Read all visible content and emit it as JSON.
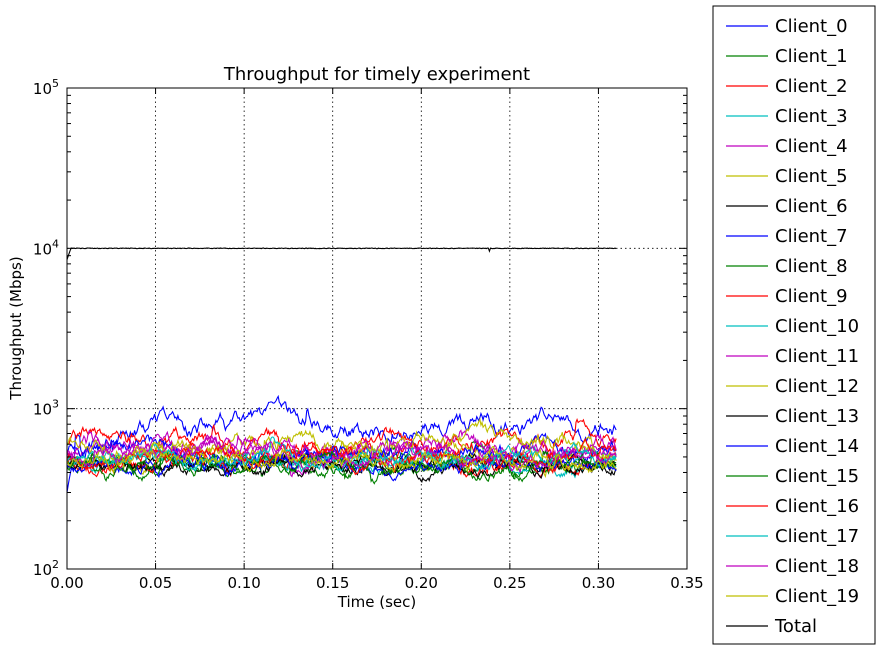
{
  "chart_data": {
    "type": "line",
    "title": "Throughput for timely experiment",
    "xlabel": "Time (sec)",
    "ylabel": "Throughput (Mbps)",
    "xlim": [
      0.0,
      0.35
    ],
    "ylim": [
      100,
      100000
    ],
    "yscale": "log",
    "grid": true,
    "legend_position": "outside-right",
    "x_ticks": [
      "0.00",
      "0.05",
      "0.10",
      "0.15",
      "0.20",
      "0.25",
      "0.30",
      "0.35"
    ],
    "y_ticks": [
      {
        "base": "10",
        "exp": "2"
      },
      {
        "base": "10",
        "exp": "3"
      },
      {
        "base": "10",
        "exp": "4"
      },
      {
        "base": "10",
        "exp": "5"
      }
    ],
    "x_end": 0.31,
    "series": [
      {
        "name": "Client_0",
        "color": "#0000ff",
        "level": 750,
        "spread": 0.14
      },
      {
        "name": "Client_1",
        "color": "#008000",
        "level": 480,
        "spread": 0.1
      },
      {
        "name": "Client_2",
        "color": "#ff0000",
        "level": 600,
        "spread": 0.13
      },
      {
        "name": "Client_3",
        "color": "#00bfbf",
        "level": 460,
        "spread": 0.1
      },
      {
        "name": "Client_4",
        "color": "#bf00bf",
        "level": 540,
        "spread": 0.12
      },
      {
        "name": "Client_5",
        "color": "#bfbf00",
        "level": 500,
        "spread": 0.12
      },
      {
        "name": "Client_6",
        "color": "#000000",
        "level": 450,
        "spread": 0.1
      },
      {
        "name": "Client_7",
        "color": "#0000ff",
        "level": 520,
        "spread": 0.12
      },
      {
        "name": "Client_8",
        "color": "#008000",
        "level": 440,
        "spread": 0.1
      },
      {
        "name": "Client_9",
        "color": "#ff0000",
        "level": 470,
        "spread": 0.11
      },
      {
        "name": "Client_10",
        "color": "#00bfbf",
        "level": 480,
        "spread": 0.1
      },
      {
        "name": "Client_11",
        "color": "#bf00bf",
        "level": 560,
        "spread": 0.12
      },
      {
        "name": "Client_12",
        "color": "#bfbf00",
        "level": 620,
        "spread": 0.12
      },
      {
        "name": "Client_13",
        "color": "#000000",
        "level": 430,
        "spread": 0.1
      },
      {
        "name": "Client_14",
        "color": "#0000ff",
        "level": 460,
        "spread": 0.1
      },
      {
        "name": "Client_15",
        "color": "#008000",
        "level": 440,
        "spread": 0.1
      },
      {
        "name": "Client_16",
        "color": "#ff0000",
        "level": 500,
        "spread": 0.11
      },
      {
        "name": "Client_17",
        "color": "#00bfbf",
        "level": 470,
        "spread": 0.1
      },
      {
        "name": "Client_18",
        "color": "#bf00bf",
        "level": 520,
        "spread": 0.11
      },
      {
        "name": "Client_19",
        "color": "#bfbf00",
        "level": 470,
        "spread": 0.11
      },
      {
        "name": "Total",
        "color": "#000000",
        "level": 10000,
        "spread": 0.003
      }
    ]
  }
}
